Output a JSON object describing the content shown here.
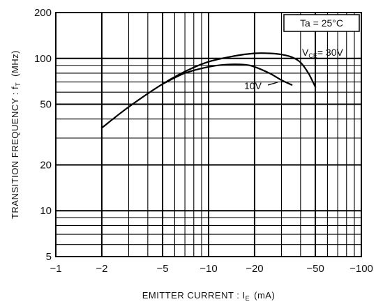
{
  "chart_data": {
    "type": "line",
    "xlabel": "EMITTER CURRENT : I",
    "xlabel_sub": "E",
    "xlabel_unit": "(mA)",
    "ylabel": "TRANSITION FREQUENCY : f",
    "ylabel_sub": "T",
    "ylabel_unit": "(MHz)",
    "x_scale": "log",
    "y_scale": "log",
    "x_ticks": [
      {
        "value": 1,
        "label": "−1"
      },
      {
        "value": 2,
        "label": "−2"
      },
      {
        "value": 5,
        "label": "−5"
      },
      {
        "value": 10,
        "label": "−10"
      },
      {
        "value": 20,
        "label": "−20"
      },
      {
        "value": 50,
        "label": "−50"
      },
      {
        "value": 100,
        "label": "−100"
      }
    ],
    "y_ticks": [
      {
        "value": 5,
        "label": "5"
      },
      {
        "value": 10,
        "label": "10"
      },
      {
        "value": 20,
        "label": "20"
      },
      {
        "value": 50,
        "label": "50"
      },
      {
        "value": 100,
        "label": "100"
      },
      {
        "value": 200,
        "label": "200"
      }
    ],
    "xlim": [
      1,
      100
    ],
    "ylim": [
      5,
      200
    ],
    "grid": true,
    "condition_box": {
      "text": "Ta = 25°C"
    },
    "series": [
      {
        "name": "V",
        "name_sub": "CE",
        "name_value": "= 30V",
        "x": [
          2,
          3,
          5,
          7,
          10,
          15,
          20,
          25,
          30,
          35,
          40,
          45,
          50
        ],
        "y": [
          35,
          48,
          68,
          82,
          95,
          104,
          108,
          108,
          106,
          102,
          94,
          80,
          65
        ]
      },
      {
        "name": "10V",
        "x": [
          5,
          7,
          10,
          13,
          17,
          20,
          25,
          30,
          35
        ],
        "y": [
          68,
          80,
          88,
          91,
          91,
          88,
          80,
          72,
          67
        ]
      }
    ]
  }
}
